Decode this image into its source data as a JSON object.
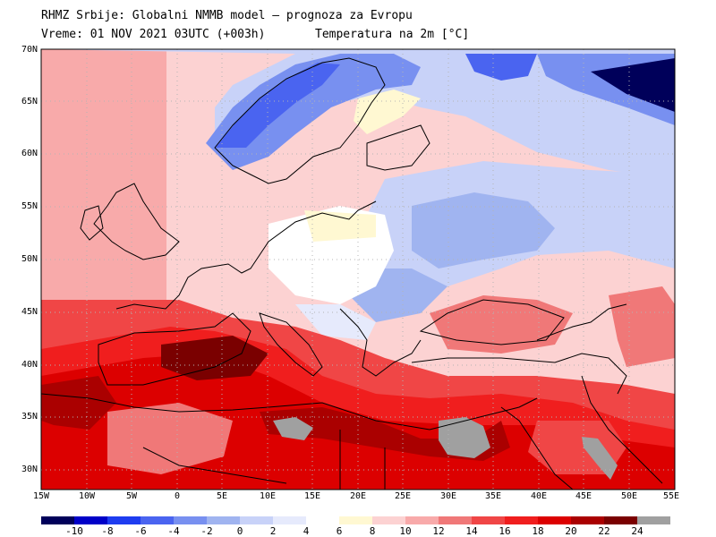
{
  "header": {
    "line1": "RHMZ Srbije: Globalni NMMB model — prognoza za Evropu",
    "line2_time": "Vreme: 01 NOV 2021 03UTC (+003h)",
    "line2_field": "Temperatura na 2m [°C]"
  },
  "axes": {
    "lat_labels": [
      "70N",
      "65N",
      "60N",
      "55N",
      "50N",
      "45N",
      "40N",
      "35N",
      "30N"
    ],
    "lon_labels": [
      "15W",
      "10W",
      "5W",
      "0",
      "5E",
      "10E",
      "15E",
      "20E",
      "25E",
      "30E",
      "35E",
      "40E",
      "45E",
      "50E",
      "55E"
    ]
  },
  "colorbar": {
    "labels": [
      "-10",
      "-8",
      "-6",
      "-4",
      "-2",
      "0",
      "2",
      "4",
      "6",
      "8",
      "10",
      "12",
      "14",
      "16",
      "18",
      "20",
      "22",
      "24"
    ],
    "colors": [
      "#00005a",
      "#0000c8",
      "#1e3cf0",
      "#4a64f0",
      "#7890f0",
      "#a0b4f0",
      "#c8d2f8",
      "#e6eafc",
      "#ffffff",
      "#fff8d2",
      "#fcd2d2",
      "#f8aaaa",
      "#f07878",
      "#f04646",
      "#f01e1e",
      "#dc0000",
      "#aa0000",
      "#7a0000",
      "#a0a0a0"
    ],
    "land_gray_color": "#a0a0a0"
  }
}
